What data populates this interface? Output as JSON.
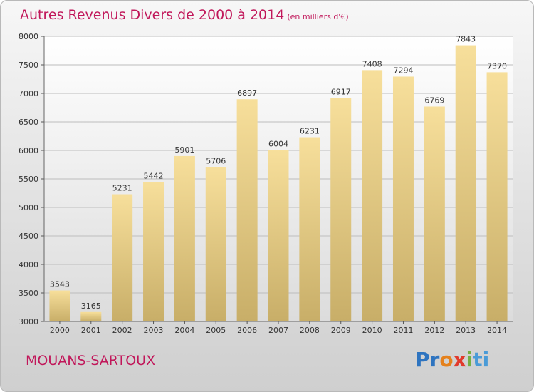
{
  "title": "Autres Revenus Divers de 2000 à 2014",
  "subtitle": "(en milliers d'€)",
  "commune": "MOUANS-SARTOUX",
  "logo": {
    "p1": "Pr",
    "p2": "o",
    "p3": "x",
    "p4": "i",
    "p5": "ti"
  },
  "chart_data": {
    "type": "bar",
    "title": "Autres Revenus Divers de 2000 à 2014",
    "subtitle": "(en milliers d'€)",
    "categories": [
      "2000",
      "2001",
      "2002",
      "2003",
      "2004",
      "2005",
      "2006",
      "2007",
      "2008",
      "2009",
      "2010",
      "2011",
      "2012",
      "2013",
      "2014"
    ],
    "values": [
      3543,
      3165,
      5231,
      5442,
      5901,
      5706,
      6897,
      6004,
      6231,
      6917,
      7408,
      7294,
      6769,
      7843,
      7370
    ],
    "ylim": [
      3000,
      8000
    ],
    "yticks": [
      3000,
      3500,
      4000,
      4500,
      5000,
      5500,
      6000,
      6500,
      7000,
      7500,
      8000
    ],
    "grid": true,
    "legend": "none",
    "colors": {
      "bar_top": "#f7df9b",
      "bar_bottom": "#c8ae68",
      "title": "#c1175a"
    }
  }
}
